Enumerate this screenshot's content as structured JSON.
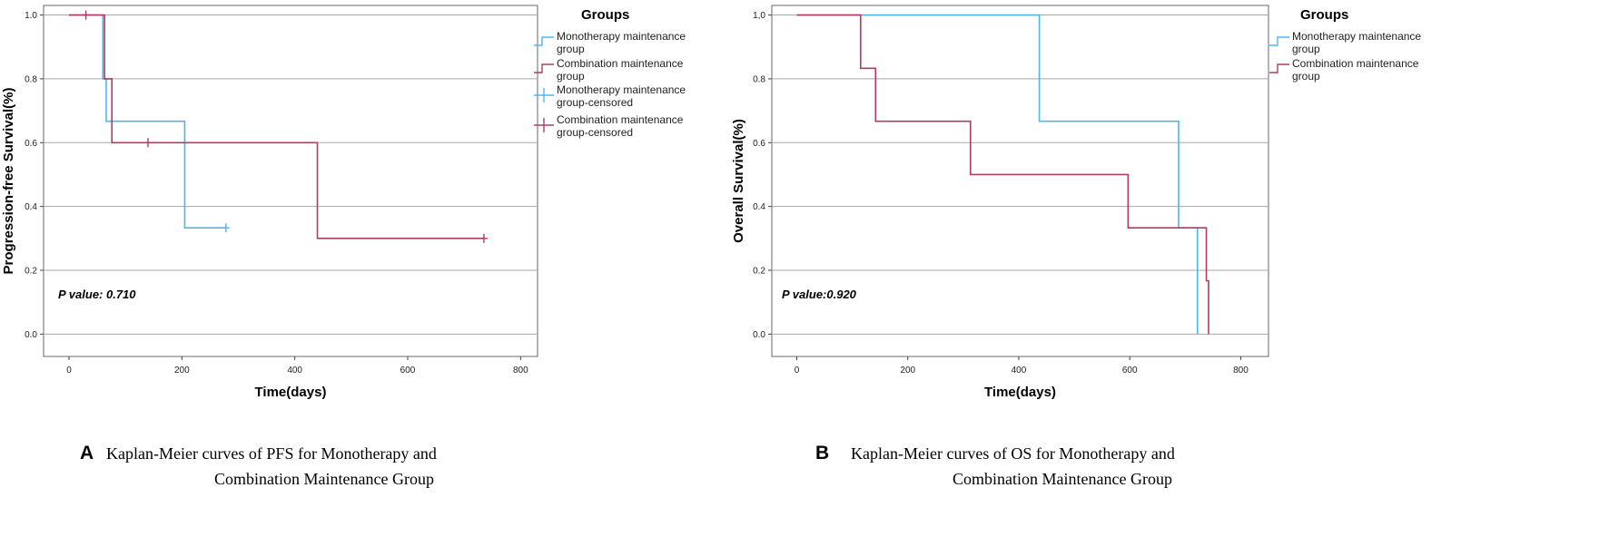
{
  "colors": {
    "monotherapy": "#4db8e8",
    "combination": "#b03c66",
    "grid": "#a8a8a8",
    "axis": "#444444"
  },
  "chart_data": [
    {
      "type": "line",
      "subtype": "kaplan-meier",
      "panel": "A",
      "xlabel": "Time(days)",
      "ylabel": "Progression-free Survival(%)",
      "xlim": [
        -45,
        830
      ],
      "ylim": [
        -0.07,
        1.03
      ],
      "xticks": [
        0,
        200,
        400,
        600,
        800
      ],
      "yticks": [
        0.0,
        0.2,
        0.4,
        0.6,
        0.8,
        1.0
      ],
      "ytick_labels": [
        "0.0",
        "0.2",
        "0.4",
        "0.6",
        "0.8",
        "1.0"
      ],
      "grid": "horizontal",
      "legend": {
        "title": "Groups",
        "entries": [
          {
            "lines": [
              "Monotherapy maintenance",
              "group"
            ],
            "series": "monotherapy",
            "style": "step"
          },
          {
            "lines": [
              "Combination maintenance",
              "group"
            ],
            "series": "combination",
            "style": "step"
          },
          {
            "lines": [
              "Monotherapy maintenance",
              "group-censored"
            ],
            "series": "monotherapy",
            "style": "censor"
          },
          {
            "lines": [
              "Combination maintenance",
              "group-censored"
            ],
            "series": "combination",
            "style": "censor"
          }
        ]
      },
      "annotation": "P value:  0.710",
      "series": [
        {
          "name": "Monotherapy maintenance group",
          "color_key": "monotherapy",
          "steps": [
            [
              0,
              1.0
            ],
            [
              60,
              0.8
            ],
            [
              66,
              0.667
            ],
            [
              205,
              0.333
            ],
            [
              278,
              0.333
            ]
          ],
          "censored": [
            [
              278,
              0.333
            ]
          ]
        },
        {
          "name": "Combination maintenance group",
          "color_key": "combination",
          "steps": [
            [
              0,
              1.0
            ],
            [
              63,
              0.8
            ],
            [
              76,
              0.6
            ],
            [
              440,
              0.3
            ],
            [
              735,
              0.3
            ]
          ],
          "censored": [
            [
              30,
              1.0
            ],
            [
              140,
              0.6
            ],
            [
              735,
              0.3
            ]
          ]
        }
      ],
      "caption": {
        "letter": "A",
        "lines": [
          "Kaplan-Meier curves of PFS for Monotherapy and",
          "Combination Maintenance Group"
        ]
      }
    },
    {
      "type": "line",
      "subtype": "kaplan-meier",
      "panel": "B",
      "xlabel": "Time(days)",
      "ylabel": "Overall Survival(%)",
      "xlim": [
        -45,
        850
      ],
      "ylim": [
        -0.07,
        1.03
      ],
      "xticks": [
        0,
        200,
        400,
        600,
        800
      ],
      "yticks": [
        0.0,
        0.2,
        0.4,
        0.6,
        0.8,
        1.0
      ],
      "ytick_labels": [
        "0.0",
        "0.2",
        "0.4",
        "0.6",
        "0.8",
        "1,0"
      ],
      "grid": "horizontal",
      "legend": {
        "title": "Groups",
        "entries": [
          {
            "lines": [
              "Monotherapy maintenance",
              "group"
            ],
            "series": "monotherapy",
            "style": "step"
          },
          {
            "lines": [
              "Combination maintenance",
              "group"
            ],
            "series": "combination",
            "style": "step"
          }
        ]
      },
      "annotation": "P value:0.920",
      "series": [
        {
          "name": "Monotherapy maintenance group",
          "color_key": "monotherapy",
          "steps": [
            [
              0,
              1.0
            ],
            [
              437,
              0.667
            ],
            [
              688,
              0.333
            ],
            [
              722,
              0.0
            ]
          ],
          "censored": []
        },
        {
          "name": "Combination maintenance group",
          "color_key": "combination",
          "steps": [
            [
              0,
              1.0
            ],
            [
              115,
              0.833
            ],
            [
              142,
              0.667
            ],
            [
              313,
              0.5
            ],
            [
              597,
              0.333
            ],
            [
              738,
              0.167
            ],
            [
              742,
              0.0
            ]
          ],
          "censored": []
        }
      ],
      "caption": {
        "letter": "B",
        "lines": [
          "Kaplan-Meier curves of OS for Monotherapy and",
          "Combination Maintenance Group"
        ]
      }
    }
  ]
}
